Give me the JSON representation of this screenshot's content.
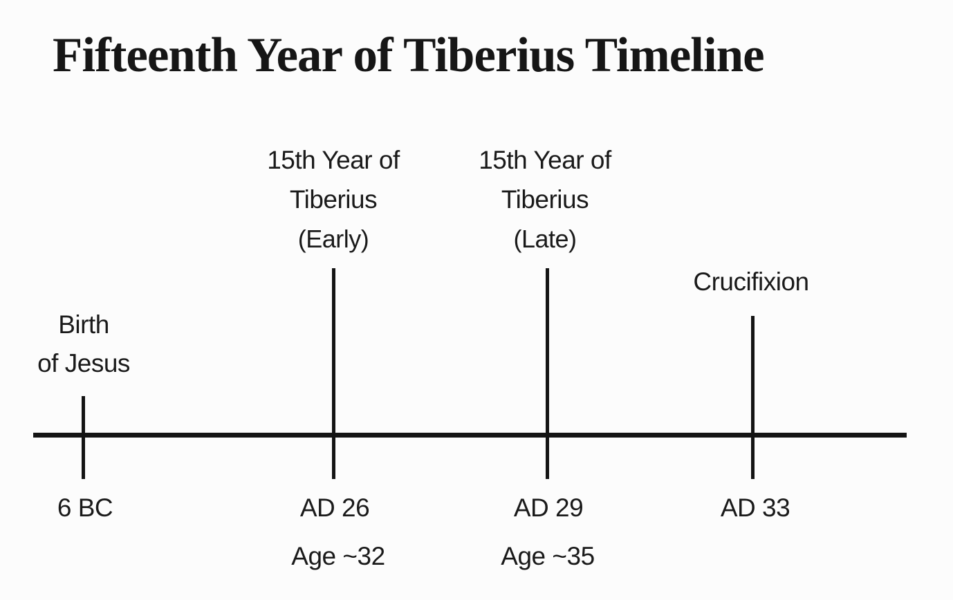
{
  "title": "Fifteenth Year of Tiberius Timeline",
  "colors": {
    "text": "#1a1a1a",
    "line": "#141414",
    "background": "#fcfcfc"
  },
  "timeline": {
    "type": "timeline",
    "direction": "horizontal",
    "events": [
      {
        "name": "birth-of-jesus",
        "label_lines": [
          "Birth",
          "of Jesus"
        ],
        "sub_label": "",
        "date": "6 BC",
        "age": ""
      },
      {
        "name": "fifteenth-year-of-tiberius-early",
        "label_lines": [
          "15th Year of",
          "Tiberius"
        ],
        "sub_label": "(Early)",
        "date": "AD 26",
        "age": "Age ~32"
      },
      {
        "name": "fifteenth-year-of-tiberius-late",
        "label_lines": [
          "15th Year of",
          "Tiberius"
        ],
        "sub_label": "(Late)",
        "date": "AD 29",
        "age": "Age ~35"
      },
      {
        "name": "crucifixion",
        "label_lines": [
          "Crucifixion"
        ],
        "sub_label": "",
        "date": "AD 33",
        "age": ""
      }
    ]
  }
}
